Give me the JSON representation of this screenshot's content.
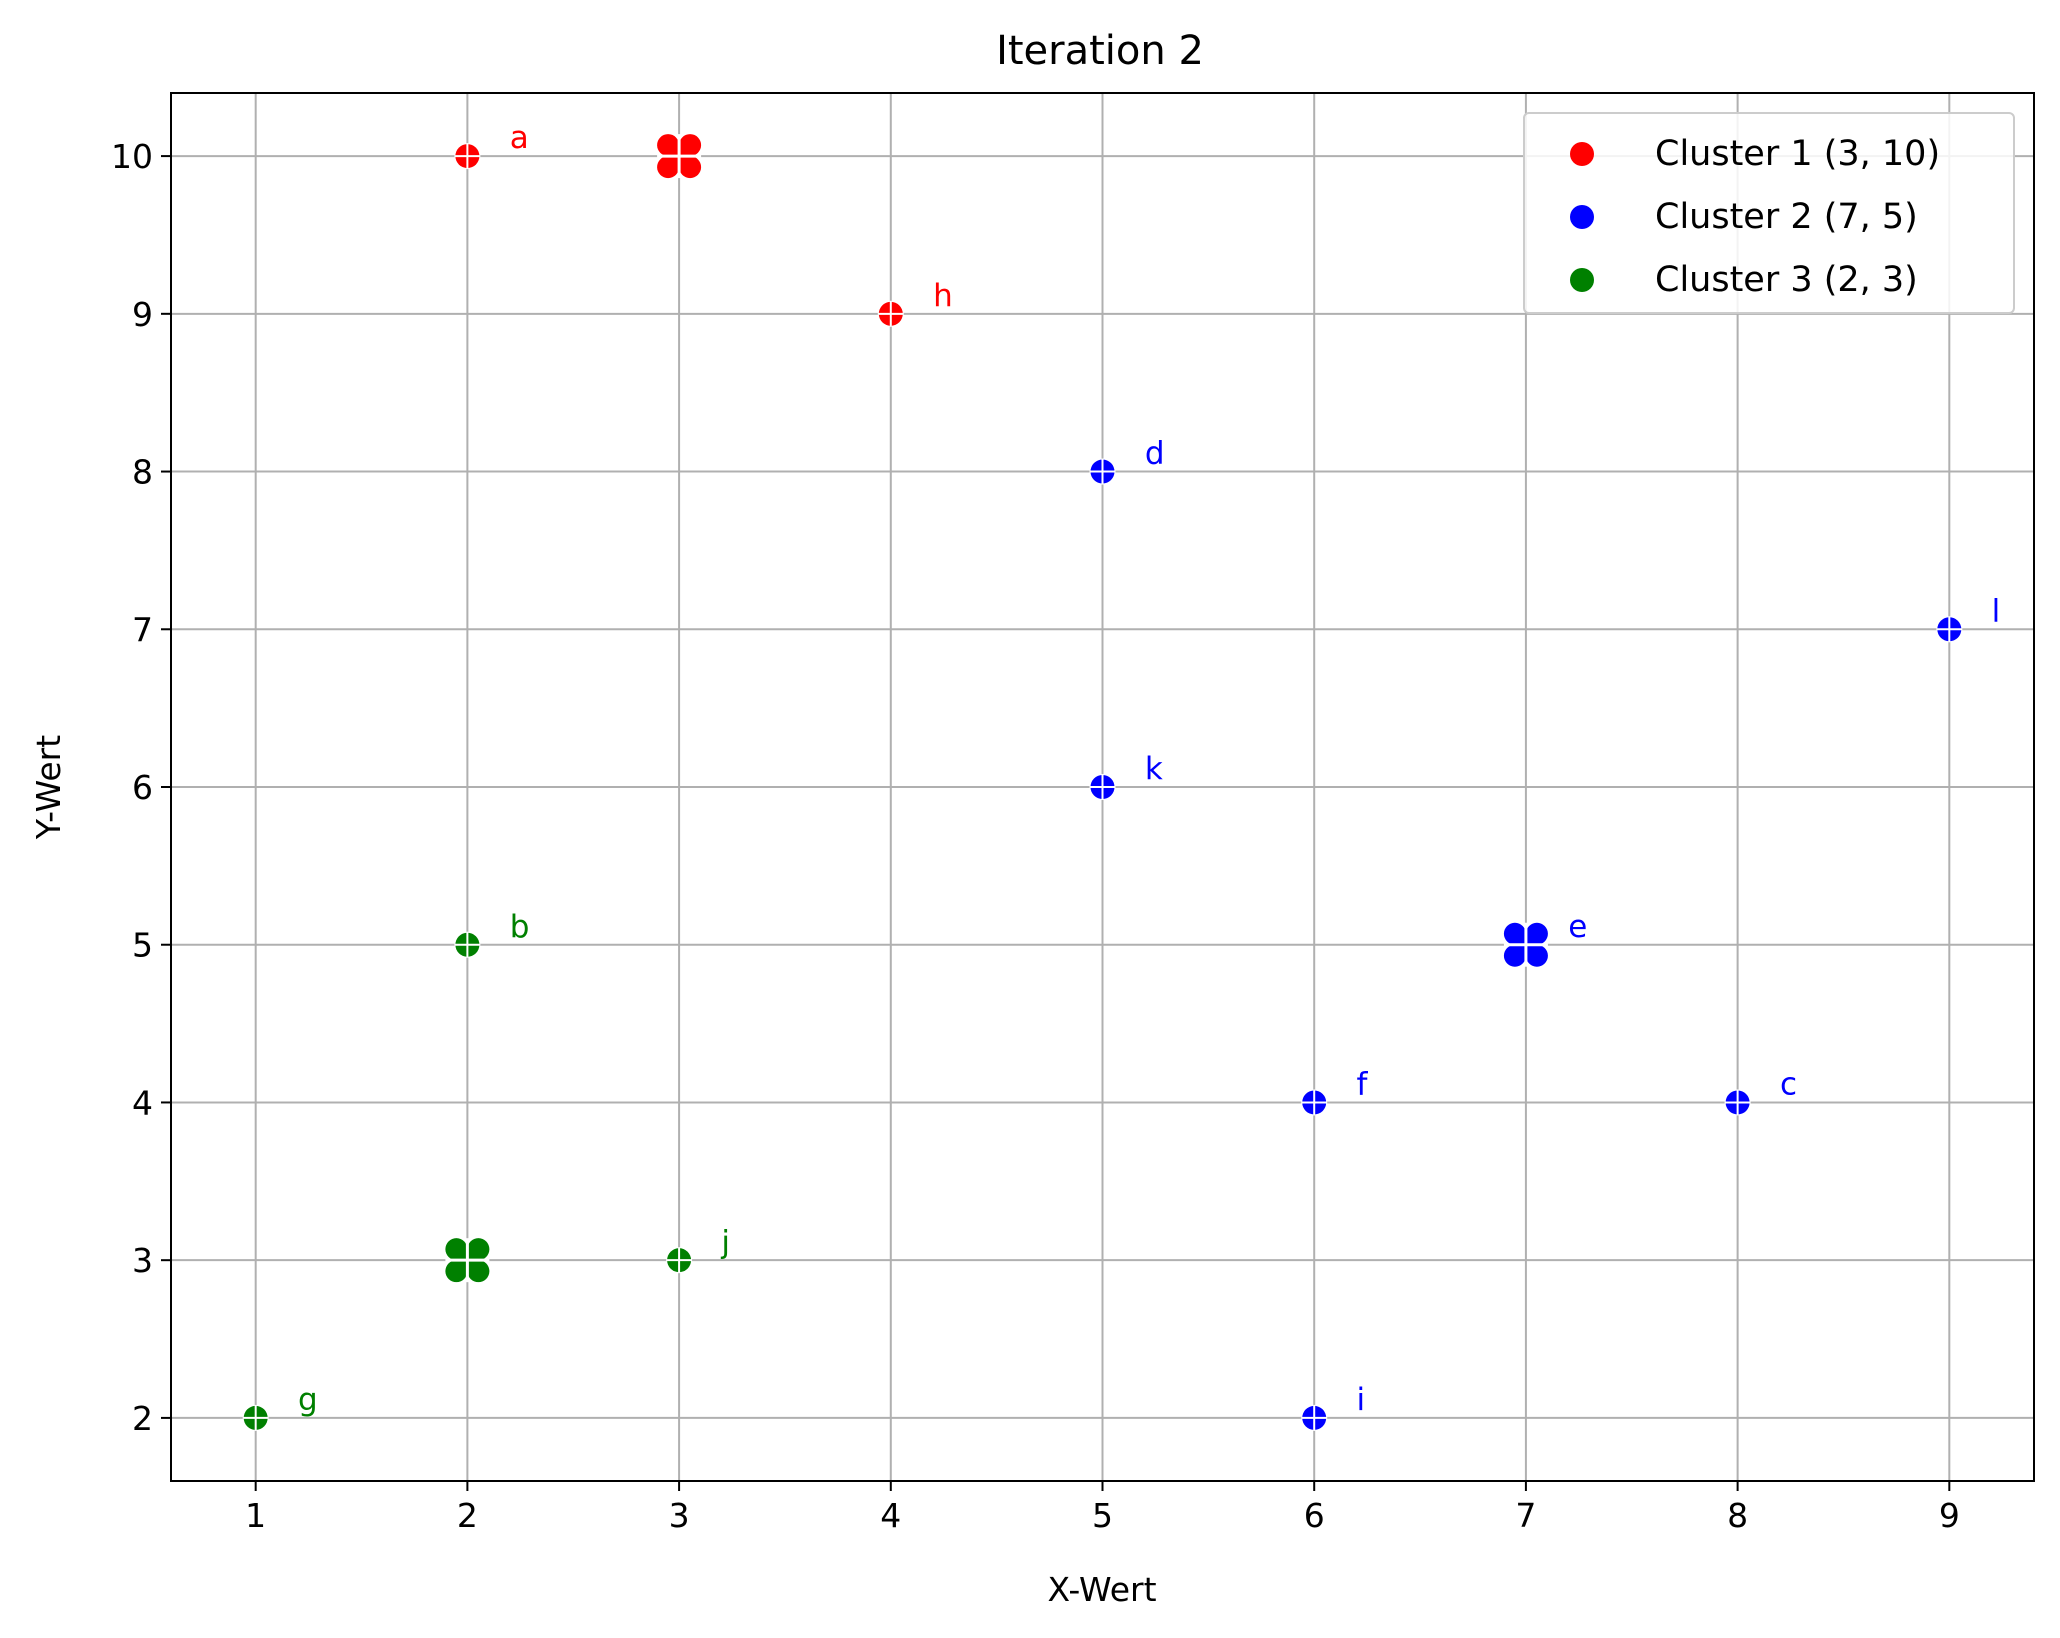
{
  "chart_data": {
    "type": "scatter",
    "title": "Iteration 2",
    "xlabel": "X-Wert",
    "ylabel": "Y-Wert",
    "xlim": [
      0.6,
      9.4
    ],
    "ylim": [
      1.6,
      10.4
    ],
    "xticks": [
      "1",
      "2",
      "3",
      "4",
      "5",
      "6",
      "7",
      "8",
      "9"
    ],
    "yticks": [
      "2",
      "3",
      "4",
      "5",
      "6",
      "7",
      "8",
      "9",
      "10"
    ],
    "grid": true,
    "legend_position": "top-right",
    "series": [
      {
        "name": "Cluster 1 (3, 10)",
        "color": "#ff0000",
        "centroid": {
          "x": 3,
          "y": 10
        },
        "points": [
          {
            "label": "a",
            "x": 2,
            "y": 10
          },
          {
            "label": "h",
            "x": 4,
            "y": 9
          }
        ]
      },
      {
        "name": "Cluster 2 (7, 5)",
        "color": "#0000ff",
        "centroid": {
          "x": 7,
          "y": 5
        },
        "points": [
          {
            "label": "d",
            "x": 5,
            "y": 8
          },
          {
            "label": "l",
            "x": 9,
            "y": 7
          },
          {
            "label": "k",
            "x": 5,
            "y": 6
          },
          {
            "label": "f",
            "x": 6,
            "y": 4
          },
          {
            "label": "c",
            "x": 8,
            "y": 4
          },
          {
            "label": "i",
            "x": 6,
            "y": 2
          }
        ]
      },
      {
        "name": "Cluster 3 (2, 3)",
        "color": "#008000",
        "centroid": {
          "x": 2,
          "y": 3
        },
        "points": [
          {
            "label": "b",
            "x": 2,
            "y": 5
          },
          {
            "label": "j",
            "x": 3,
            "y": 3
          },
          {
            "label": "g",
            "x": 1,
            "y": 2
          }
        ]
      }
    ],
    "extra_labels": [
      {
        "label": "e",
        "x": 7,
        "y": 5,
        "color": "#0000ff"
      }
    ]
  }
}
